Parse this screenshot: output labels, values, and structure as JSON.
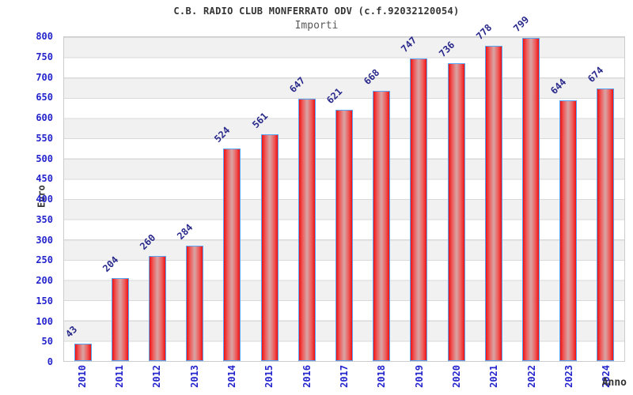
{
  "page": {
    "background": "#ffffff"
  },
  "chart_data": {
    "type": "bar",
    "title": "C.B. RADIO CLUB MONFERRATO ODV (c.f.92032120054)",
    "subtitle": "Importi",
    "ylabel": "Euro",
    "xlabel": "Anno",
    "categories": [
      "2010",
      "2011",
      "2012",
      "2013",
      "2014",
      "2015",
      "2016",
      "2017",
      "2018",
      "2019",
      "2020",
      "2021",
      "2022",
      "2023",
      "2024"
    ],
    "values": [
      43,
      204,
      260,
      284,
      524,
      561,
      647,
      621,
      668,
      747,
      736,
      778,
      799,
      644,
      674
    ],
    "ylim": [
      0,
      800
    ],
    "ytick_step": 50,
    "grid": true,
    "legend_position": "none",
    "plot_style": "alternating gray/white horizontal bands every 50 units, value labels rotated 45deg above bars, year labels rotated 90deg",
    "colors": {
      "bar_fill_edge": "#ee1212",
      "bar_fill_center": "#d9a0a0",
      "bar_border": "#58a5f5",
      "axis_tick_label": "#2424cd",
      "value_label": "#29298c",
      "title": "#333333",
      "subtitle": "#585858",
      "band_gray": "#f1f1f1",
      "gridline": "#d9d9d9"
    }
  }
}
